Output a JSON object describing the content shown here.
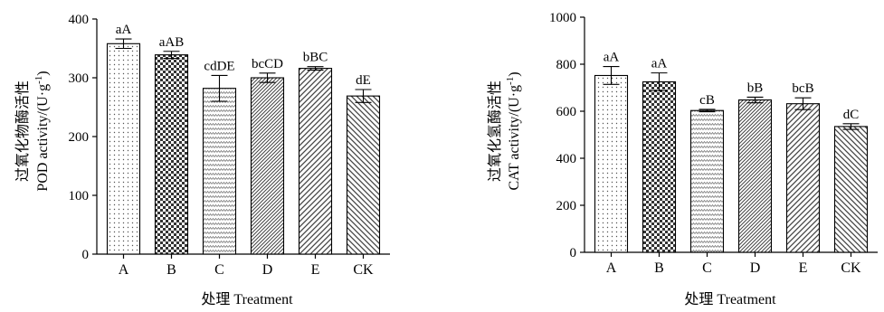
{
  "chart_data": [
    {
      "type": "bar",
      "xlabel": "处理 Treatment",
      "ylabel_cn": "过氧化物酶活性",
      "ylabel_en_main": "POD activity/(U·g",
      "ylabel_en_sup": "-1",
      "ylabel_en_tail": ")",
      "categories": [
        "A",
        "B",
        "C",
        "D",
        "E",
        "CK"
      ],
      "values": [
        358,
        339,
        282,
        300,
        316,
        269
      ],
      "errors": [
        8,
        6,
        22,
        8,
        3,
        11
      ],
      "significance": [
        "aA",
        "aAB",
        "cdDE",
        "bcCD",
        "bBC",
        "dE"
      ],
      "patterns": [
        "dots",
        "checker",
        "waves",
        "diag-fine",
        "diag-wide",
        "back-diag"
      ],
      "ylim": [
        0,
        400
      ],
      "yticks": [
        "0",
        "100",
        "200",
        "300",
        "400"
      ]
    },
    {
      "type": "bar",
      "xlabel": "处理 Treatment",
      "ylabel_cn": "过氧化氢酶活性",
      "ylabel_en_main": "CAT activity/(U·g",
      "ylabel_en_sup": "-1",
      "ylabel_en_tail": ")",
      "categories": [
        "A",
        "B",
        "C",
        "D",
        "E",
        "CK"
      ],
      "values": [
        752,
        725,
        603,
        648,
        632,
        535
      ],
      "errors": [
        38,
        38,
        5,
        12,
        25,
        12
      ],
      "significance": [
        "aA",
        "aA",
        "cB",
        "bB",
        "bcB",
        "dC"
      ],
      "patterns": [
        "dots",
        "checker",
        "waves",
        "diag-fine",
        "diag-wide",
        "back-diag"
      ],
      "ylim": [
        0,
        1000
      ],
      "yticks": [
        "0",
        "200",
        "400",
        "600",
        "800",
        "1000"
      ]
    }
  ]
}
